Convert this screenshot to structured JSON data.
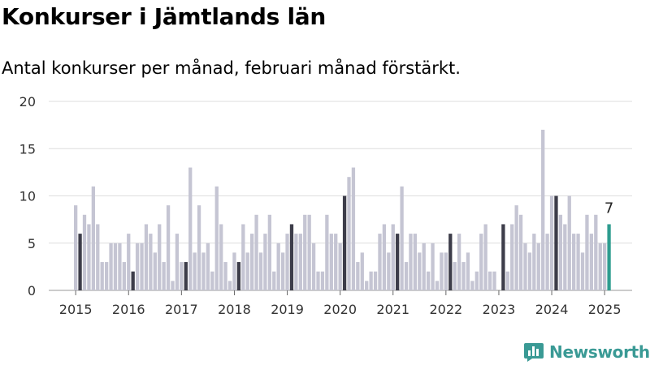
{
  "header": {
    "title": "Konkurser i Jämtlands län",
    "subtitle": "Antal konkurser per månad, februari månad förstärkt."
  },
  "brand": {
    "name": "Newsworthy",
    "color": "#3a9a95"
  },
  "colors": {
    "regular": "#c5c5d3",
    "highlight": "#3d3d4a",
    "latest": "#2e9c8f",
    "grid": "#dddddd"
  },
  "chart_data": {
    "type": "bar",
    "title": "Konkurser i Jämtlands län",
    "subtitle": "Antal konkurser per månad, februari månad förstärkt.",
    "ylim": [
      0,
      20
    ],
    "yticks": [
      0,
      5,
      10,
      15,
      20
    ],
    "xticks": [
      "2015",
      "2016",
      "2017",
      "2018",
      "2019",
      "2020",
      "2021",
      "2022",
      "2023",
      "2024",
      "2025"
    ],
    "start": "2015-01",
    "highlight_month": "februari",
    "grid": true,
    "latest_label": "7",
    "values": [
      9,
      6,
      8,
      7,
      11,
      7,
      3,
      3,
      5,
      5,
      5,
      3,
      6,
      2,
      5,
      5,
      7,
      6,
      4,
      7,
      3,
      9,
      1,
      6,
      3,
      3,
      13,
      4,
      9,
      4,
      5,
      2,
      11,
      7,
      3,
      1,
      4,
      3,
      7,
      4,
      6,
      8,
      4,
      6,
      8,
      2,
      5,
      4,
      6,
      7,
      6,
      6,
      8,
      8,
      5,
      2,
      2,
      8,
      6,
      6,
      5,
      10,
      12,
      13,
      3,
      4,
      1,
      2,
      2,
      6,
      7,
      4,
      7,
      6,
      11,
      3,
      6,
      6,
      4,
      5,
      2,
      5,
      1,
      4,
      4,
      6,
      3,
      6,
      3,
      4,
      1,
      2,
      6,
      7,
      2,
      2,
      0,
      7,
      2,
      7,
      9,
      8,
      5,
      4,
      6,
      5,
      17,
      6,
      10,
      10,
      8,
      7,
      10,
      6,
      6,
      4,
      8,
      6,
      8,
      5,
      5,
      7
    ]
  }
}
